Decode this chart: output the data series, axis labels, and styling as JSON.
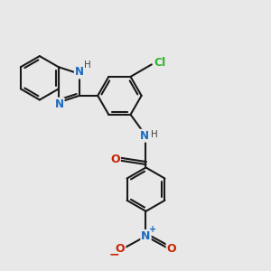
{
  "bg_color": "#e8e8e8",
  "bond_color": "#1a1a1a",
  "bond_width": 1.5,
  "atom_colors": {
    "N": "#1a6abf",
    "O": "#cc2200",
    "Cl": "#2db52d"
  },
  "figsize": [
    3.0,
    3.0
  ],
  "dpi": 100,
  "xlim": [
    -1.5,
    5.5
  ],
  "ylim": [
    -3.5,
    3.5
  ]
}
